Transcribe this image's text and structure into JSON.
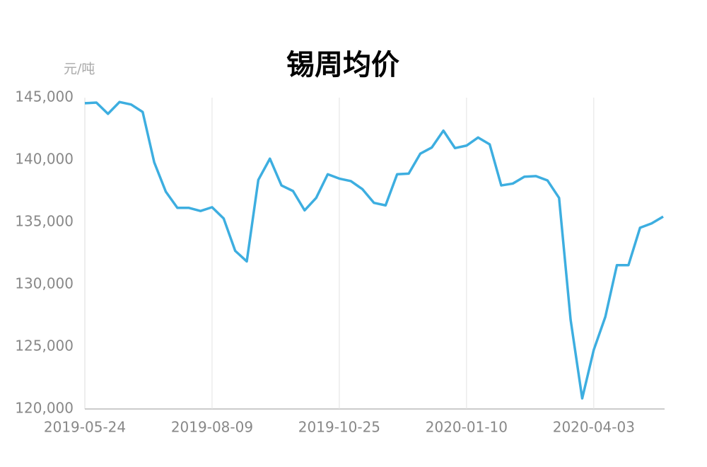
{
  "chart_data": {
    "type": "line",
    "title": "锡周均价",
    "y_label": "元/吨",
    "categories": [
      "2019-05-24",
      null,
      null,
      null,
      null,
      null,
      null,
      null,
      null,
      null,
      null,
      "2019-08-09",
      null,
      null,
      null,
      null,
      null,
      null,
      null,
      null,
      null,
      null,
      "2019-10-25",
      null,
      null,
      null,
      null,
      null,
      null,
      null,
      null,
      null,
      null,
      "2020-01-10",
      null,
      null,
      null,
      null,
      null,
      null,
      null,
      null,
      null,
      null,
      "2020-04-03",
      null,
      null,
      null,
      null,
      null,
      null
    ],
    "series": [
      {
        "name": "锡周均价",
        "color": "#3daee0",
        "values": [
          144550,
          144600,
          143700,
          144650,
          144450,
          143850,
          139800,
          137450,
          136150,
          136150,
          135900,
          136200,
          135300,
          132700,
          131850,
          138400,
          140100,
          137950,
          137500,
          135950,
          136950,
          138850,
          138500,
          138300,
          137650,
          136550,
          136350,
          138850,
          138900,
          140500,
          141000,
          142350,
          140950,
          141150,
          141800,
          141250,
          137950,
          138100,
          138650,
          138700,
          138350,
          136950,
          127150,
          120850,
          124750,
          127400,
          131550,
          131550,
          134550,
          134900,
          135450
        ]
      }
    ],
    "ylim": [
      120000,
      145000
    ],
    "yticks": [
      {
        "value": 120000,
        "label": "120,000"
      },
      {
        "value": 125000,
        "label": "125,000"
      },
      {
        "value": 130000,
        "label": "130,000"
      },
      {
        "value": 135000,
        "label": "135,000"
      },
      {
        "value": 140000,
        "label": "140,000"
      },
      {
        "value": 145000,
        "label": "145,000"
      }
    ],
    "grid": true
  }
}
